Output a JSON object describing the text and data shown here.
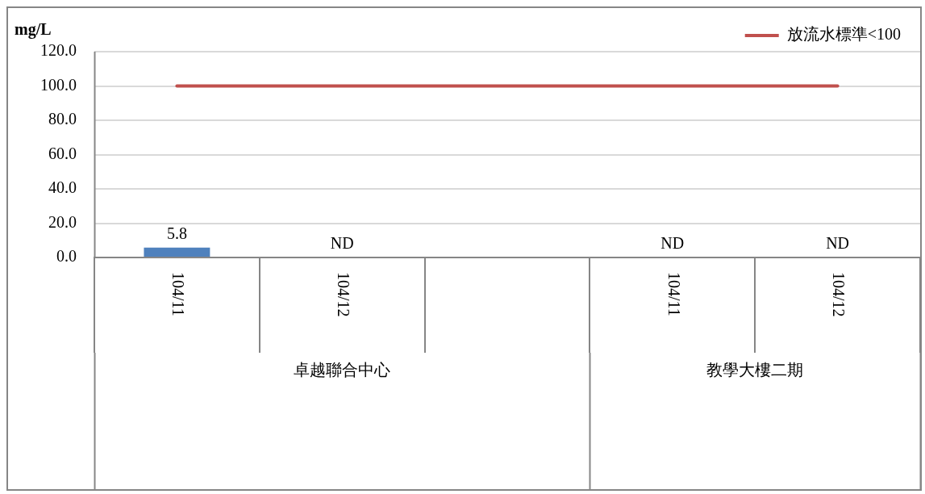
{
  "chart_data": {
    "type": "bar",
    "ylabel": "mg/L",
    "categories": [
      "104/11",
      "104/12",
      null,
      "104/11",
      "104/12"
    ],
    "series": [
      {
        "color": "#4f81bd",
        "values": [
          5.8,
          null,
          null,
          null,
          null
        ],
        "value_labels": [
          "5.8",
          "ND",
          null,
          "ND",
          "ND"
        ]
      },
      {
        "type": "line",
        "name": "放流水標準<100",
        "color": "#c0504d",
        "values": [
          100,
          100,
          100,
          100,
          100
        ]
      }
    ],
    "ylim": [
      0,
      120
    ],
    "yticks": [
      {
        "value": 0,
        "label": "0.0"
      },
      {
        "value": 20,
        "label": "20.0"
      },
      {
        "value": 40,
        "label": "40.0"
      },
      {
        "value": 60,
        "label": "60.0"
      },
      {
        "value": 80,
        "label": "80.0"
      },
      {
        "value": 100,
        "label": "100.0"
      },
      {
        "value": 120,
        "label": "120.0"
      }
    ],
    "grid": "y",
    "legend": "top right",
    "marker": "none",
    "line_style": "solid",
    "annotations": [
      "卓越聯合中心",
      "教學大樓二期"
    ]
  }
}
